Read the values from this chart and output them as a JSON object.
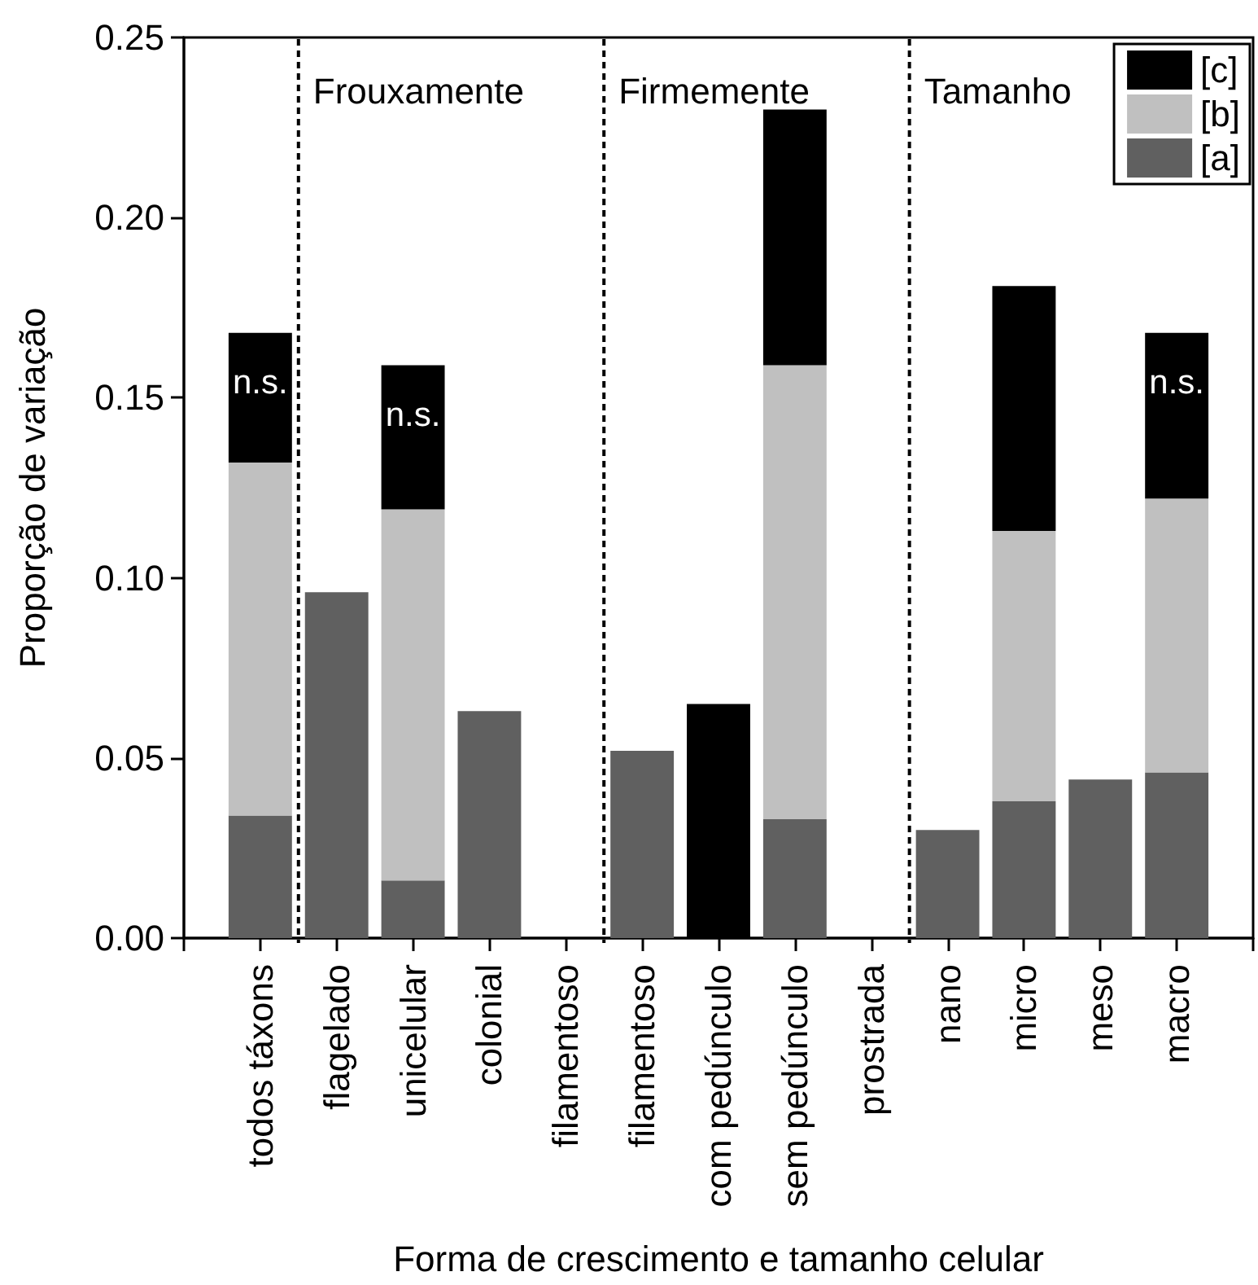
{
  "chart_data": {
    "type": "bar",
    "stacked": true,
    "xlabel": "Forma de crescimento e tamanho celular",
    "ylabel": "Proporção de variação",
    "categories": [
      "todos táxons",
      "flagelado",
      "unicelular",
      "colonial",
      "filamentoso",
      "filamentoso",
      "com pedúnculo",
      "sem pedúnculo",
      "prostrada",
      "nano",
      "micro",
      "meso",
      "macro"
    ],
    "series": [
      {
        "name": "[a]",
        "color": "#606060",
        "values": [
          0.034,
          0.096,
          0.016,
          0.063,
          null,
          0.052,
          null,
          0.033,
          null,
          0.03,
          0.038,
          0.044,
          0.046
        ]
      },
      {
        "name": "[b]",
        "color": "#c0c0c0",
        "values": [
          0.098,
          null,
          0.103,
          null,
          null,
          null,
          null,
          0.126,
          null,
          null,
          0.075,
          null,
          0.076
        ]
      },
      {
        "name": "[c]",
        "color": "#000000",
        "values": [
          0.036,
          null,
          0.04,
          null,
          null,
          null,
          0.065,
          0.071,
          null,
          null,
          0.068,
          null,
          0.046
        ]
      }
    ],
    "ylim": [
      0,
      0.25
    ],
    "yticks": [
      {
        "value": 0,
        "label": "0.00"
      },
      0.05,
      {
        "value": 0.1,
        "label": "0.10"
      },
      0.15,
      {
        "value": 0.2,
        "label": "0.20"
      },
      0.25
    ],
    "annotations": [
      "Frouxamente",
      "Firmemente",
      "Tamanho",
      {
        "text": "n.s.",
        "x": "todos táxons",
        "y": 0.168
      },
      {
        "text": "n.s.",
        "x": "unicelular",
        "y": 0.159
      },
      {
        "text": "n.s.",
        "x": "macro",
        "y": 0.168
      }
    ],
    "legend": "top right"
  }
}
